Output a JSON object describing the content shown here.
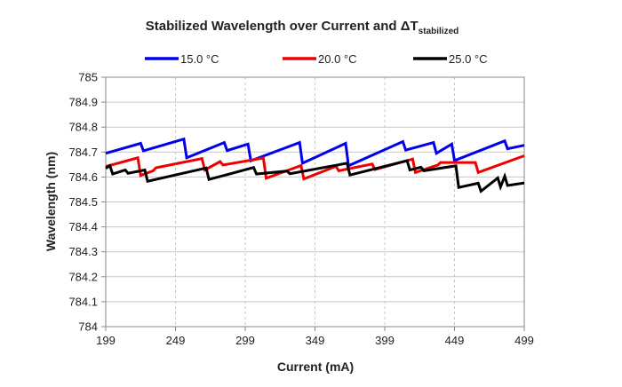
{
  "chart_data": {
    "type": "line",
    "title": "Stabilized Wavelength over Current and ΔT",
    "title_subscript": "stabilized",
    "xlabel": "Current (mA)",
    "ylabel": "Wavelength (nm)",
    "xlim": [
      199,
      499
    ],
    "ylim": [
      784,
      785
    ],
    "x_ticks": [
      199,
      249,
      299,
      349,
      399,
      449,
      499
    ],
    "y_ticks": [
      784,
      784.1,
      784.2,
      784.3,
      784.4,
      784.5,
      784.6,
      784.7,
      784.8,
      784.9,
      785
    ],
    "y_tick_labels": [
      "784",
      "784.1",
      "784.2",
      "784.3",
      "784.4",
      "784.5",
      "784.6",
      "784.7",
      "784.8",
      "784.9",
      "785"
    ],
    "grid": true,
    "legend_position": "top",
    "series": [
      {
        "name": "15.0 °C",
        "color": "#0000ee",
        "points": [
          [
            199,
            784.695
          ],
          [
            224,
            784.735
          ],
          [
            226,
            784.705
          ],
          [
            255,
            784.752
          ],
          [
            257,
            784.677
          ],
          [
            284,
            784.738
          ],
          [
            286,
            784.706
          ],
          [
            301,
            784.732
          ],
          [
            303,
            784.665
          ],
          [
            338,
            784.738
          ],
          [
            340,
            784.655
          ],
          [
            371,
            784.735
          ],
          [
            373,
            784.645
          ],
          [
            412,
            784.742
          ],
          [
            414,
            784.708
          ],
          [
            434,
            784.738
          ],
          [
            436,
            784.695
          ],
          [
            447,
            784.732
          ],
          [
            449,
            784.666
          ],
          [
            485,
            784.745
          ],
          [
            487,
            784.713
          ],
          [
            499,
            784.727
          ]
        ]
      },
      {
        "name": "20.0 °C",
        "color": "#ee0000",
        "points": [
          [
            199,
            784.642
          ],
          [
            222,
            784.677
          ],
          [
            224,
            784.606
          ],
          [
            233,
            784.625
          ],
          [
            235,
            784.637
          ],
          [
            268,
            784.674
          ],
          [
            270,
            784.628
          ],
          [
            281,
            784.662
          ],
          [
            283,
            784.648
          ],
          [
            312,
            784.676
          ],
          [
            314,
            784.595
          ],
          [
            339,
            784.646
          ],
          [
            341,
            784.592
          ],
          [
            364,
            784.643
          ],
          [
            366,
            784.625
          ],
          [
            390,
            784.652
          ],
          [
            392,
            784.63
          ],
          [
            419,
            784.672
          ],
          [
            421,
            784.618
          ],
          [
            437,
            784.648
          ],
          [
            439,
            784.658
          ],
          [
            464,
            784.658
          ],
          [
            466,
            784.618
          ],
          [
            499,
            784.685
          ]
        ]
      },
      {
        "name": "25.0 °C",
        "color": "#000000",
        "points": [
          [
            199,
            784.635
          ],
          [
            202,
            784.645
          ],
          [
            204,
            784.612
          ],
          [
            213,
            784.628
          ],
          [
            215,
            784.615
          ],
          [
            227,
            784.628
          ],
          [
            229,
            784.583
          ],
          [
            271,
            784.636
          ],
          [
            273,
            784.59
          ],
          [
            305,
            784.638
          ],
          [
            307,
            784.612
          ],
          [
            329,
            784.624
          ],
          [
            331,
            784.613
          ],
          [
            372,
            784.655
          ],
          [
            374,
            784.608
          ],
          [
            415,
            784.665
          ],
          [
            417,
            784.628
          ],
          [
            425,
            784.639
          ],
          [
            427,
            784.625
          ],
          [
            450,
            784.645
          ],
          [
            452,
            784.558
          ],
          [
            466,
            784.575
          ],
          [
            468,
            784.543
          ],
          [
            480,
            784.596
          ],
          [
            482,
            784.56
          ],
          [
            485,
            784.603
          ],
          [
            487,
            784.566
          ],
          [
            499,
            784.576
          ]
        ]
      }
    ]
  }
}
